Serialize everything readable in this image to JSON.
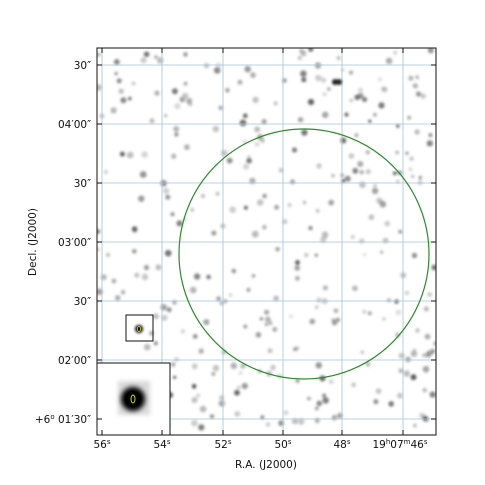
{
  "axes": {
    "xlabel": "R.A. (J2000)",
    "ylabel": "Decl. (J2000)",
    "x_ticks": [
      {
        "main": "56",
        "sup": "s"
      },
      {
        "main": "54",
        "sup": "s"
      },
      {
        "main": "52",
        "sup": "s"
      },
      {
        "main": "50",
        "sup": "s"
      },
      {
        "main": "48",
        "sup": "s"
      },
      {
        "main": "19",
        "sup": "h",
        "main2": "07",
        "sup2": "m",
        "main3": "46",
        "sup3": "s"
      }
    ],
    "y_ticks": [
      {
        "text": "30″"
      },
      {
        "text": "04′00″"
      },
      {
        "text": "30″"
      },
      {
        "text": "03′00″"
      },
      {
        "text": "30″"
      },
      {
        "text": "02′00″"
      },
      {
        "prefix": "+6",
        "sup": "o",
        "text": " 01′30″"
      }
    ]
  },
  "colors": {
    "grid": "#a9c0dc",
    "circle": "#2e8b2e",
    "inset_contour": "#e8e800",
    "star": "#555555"
  },
  "markers": {
    "region": "green-circle",
    "source_box": "black-square",
    "inset": "zoom-inset"
  }
}
